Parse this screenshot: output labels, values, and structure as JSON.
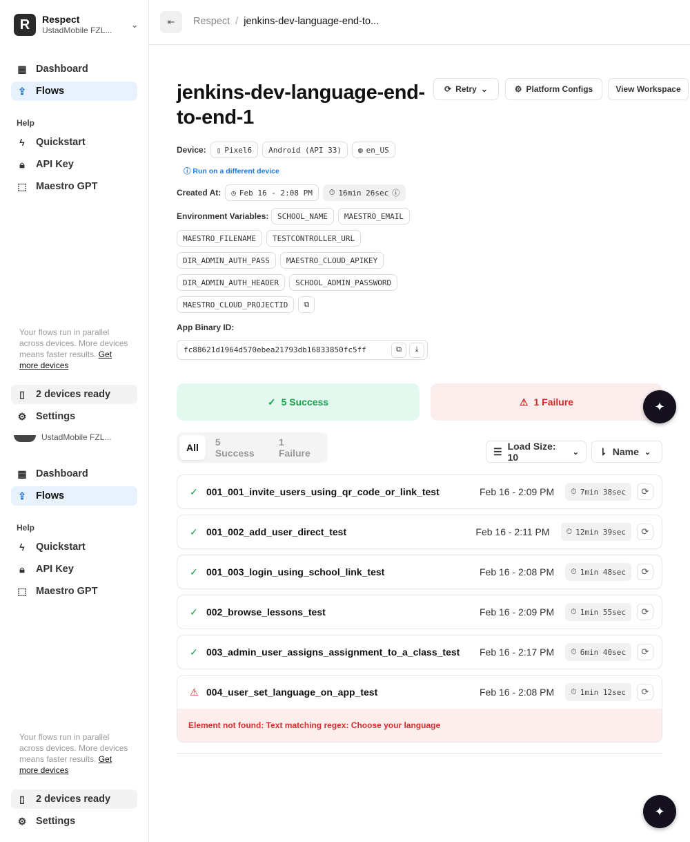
{
  "org": {
    "name": "Respect",
    "subtitle": "UstadMobile FZL...",
    "logo_letter": "R"
  },
  "sidebar": {
    "items": [
      {
        "label": "Dashboard",
        "icon": "dashboard-icon"
      },
      {
        "label": "Flows",
        "icon": "upload-icon",
        "active": true
      }
    ],
    "help_label": "Help",
    "help_items": [
      {
        "label": "Quickstart",
        "icon": "bolt-icon"
      },
      {
        "label": "API Key",
        "icon": "lock-icon"
      },
      {
        "label": "Maestro GPT",
        "icon": "chat-sparkle-icon"
      }
    ],
    "footer_text": "Your flows run in parallel across devices. More devices means faster results.",
    "footer_link": "Get more devices",
    "devices_ready": "2 devices ready",
    "settings": "Settings"
  },
  "breadcrumb": {
    "parent": "Respect",
    "separator": "/",
    "current": "jenkins-dev-language-end-to..."
  },
  "page": {
    "title": "jenkins-dev-language-end-to-end-1",
    "buttons": {
      "retry": "Retry",
      "platform_configs": "Platform Configs",
      "view_workspace": "View Workspace"
    },
    "device_label": "Device:",
    "device": {
      "model": "Pixel6",
      "os": "Android (API 33)",
      "locale": "en_US"
    },
    "run_different": "Run on a different device",
    "created_label": "Created At:",
    "created_at": "Feb 16 - 2:08 PM",
    "duration": "16min 26sec",
    "env_label": "Environment Variables:",
    "env_vars": [
      "SCHOOL_NAME",
      "MAESTRO_EMAIL",
      "MAESTRO_FILENAME",
      "TESTCONTROLLER_URL",
      "DIR_ADMIN_AUTH_PASS",
      "MAESTRO_CLOUD_APIKEY",
      "DIR_ADMIN_AUTH_HEADER",
      "SCHOOL_ADMIN_PASSWORD",
      "MAESTRO_CLOUD_PROJECTID"
    ],
    "binary_label": "App Binary ID:",
    "binary_id": "fc88621d1964d570ebea21793db16833850fc5ff"
  },
  "summary": {
    "success": "5 Success",
    "failure": "1 Failure",
    "success_color": "#16a34a",
    "failure_color": "#dc2626"
  },
  "tabs": [
    {
      "label": "All",
      "active": true
    },
    {
      "label": "5 Success"
    },
    {
      "label": "1 Failure"
    }
  ],
  "controls": {
    "load_size": "Load Size: 10",
    "sort": "Name"
  },
  "flows": [
    {
      "status": "success",
      "name": "001_001_invite_users_using_qr_code_or_link_test",
      "date": "Feb 16 - 2:09 PM",
      "duration": "7min 38sec"
    },
    {
      "status": "success",
      "name": "001_002_add_user_direct_test",
      "date": "Feb 16 - 2:11 PM",
      "duration": "12min 39sec"
    },
    {
      "status": "success",
      "name": "001_003_login_using_school_link_test",
      "date": "Feb 16 - 2:08 PM",
      "duration": "1min 48sec"
    },
    {
      "status": "success",
      "name": "002_browse_lessons_test",
      "date": "Feb 16 - 2:09 PM",
      "duration": "1min 55sec"
    },
    {
      "status": "success",
      "name": "003_admin_user_assigns_assignment_to_a_class_test",
      "date": "Feb 16 - 2:17 PM",
      "duration": "6min 40sec"
    },
    {
      "status": "failure",
      "name": "004_user_set_language_on_app_test",
      "date": "Feb 16 - 2:08 PM",
      "duration": "1min 12sec",
      "error": "Element not found: Text matching regex: Choose your language"
    }
  ]
}
